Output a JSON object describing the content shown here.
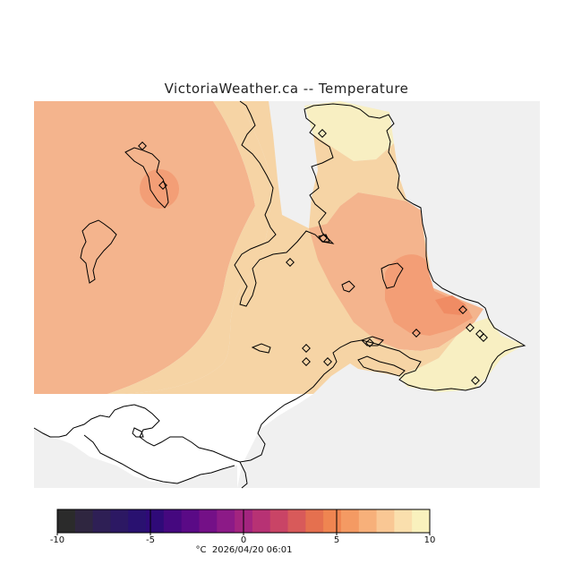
{
  "title": "VictoriaWeather.ca -- Temperature",
  "colorbar": {
    "ticks": [
      "-10",
      "-5",
      "0",
      "5",
      "10"
    ],
    "tick_values": [
      -10,
      -5,
      0,
      5,
      10
    ],
    "range": [
      -10,
      10
    ],
    "unit": "°C",
    "timestamp": "2026/04/20 06:01",
    "colors": [
      "#2b2b2b",
      "#2f2640",
      "#2e1f55",
      "#2c1863",
      "#291170",
      "#2f0a78",
      "#45087f",
      "#5a0a86",
      "#741087",
      "#8c1a87",
      "#a3247f",
      "#b73274",
      "#c94466",
      "#d85a5a",
      "#e5704f",
      "#ef8551",
      "#f49a63",
      "#f7b07a",
      "#f9c794",
      "#fadfad",
      "#f9f1bd"
    ]
  },
  "colors": {
    "land_bg": "#f0f0f0",
    "warm_dark": "#f19066",
    "warm": "#f3a27a",
    "warm_light": "#f5b58c",
    "tan": "#f6d5a6",
    "pale": "#f8eec0"
  },
  "stations_count": 15
}
